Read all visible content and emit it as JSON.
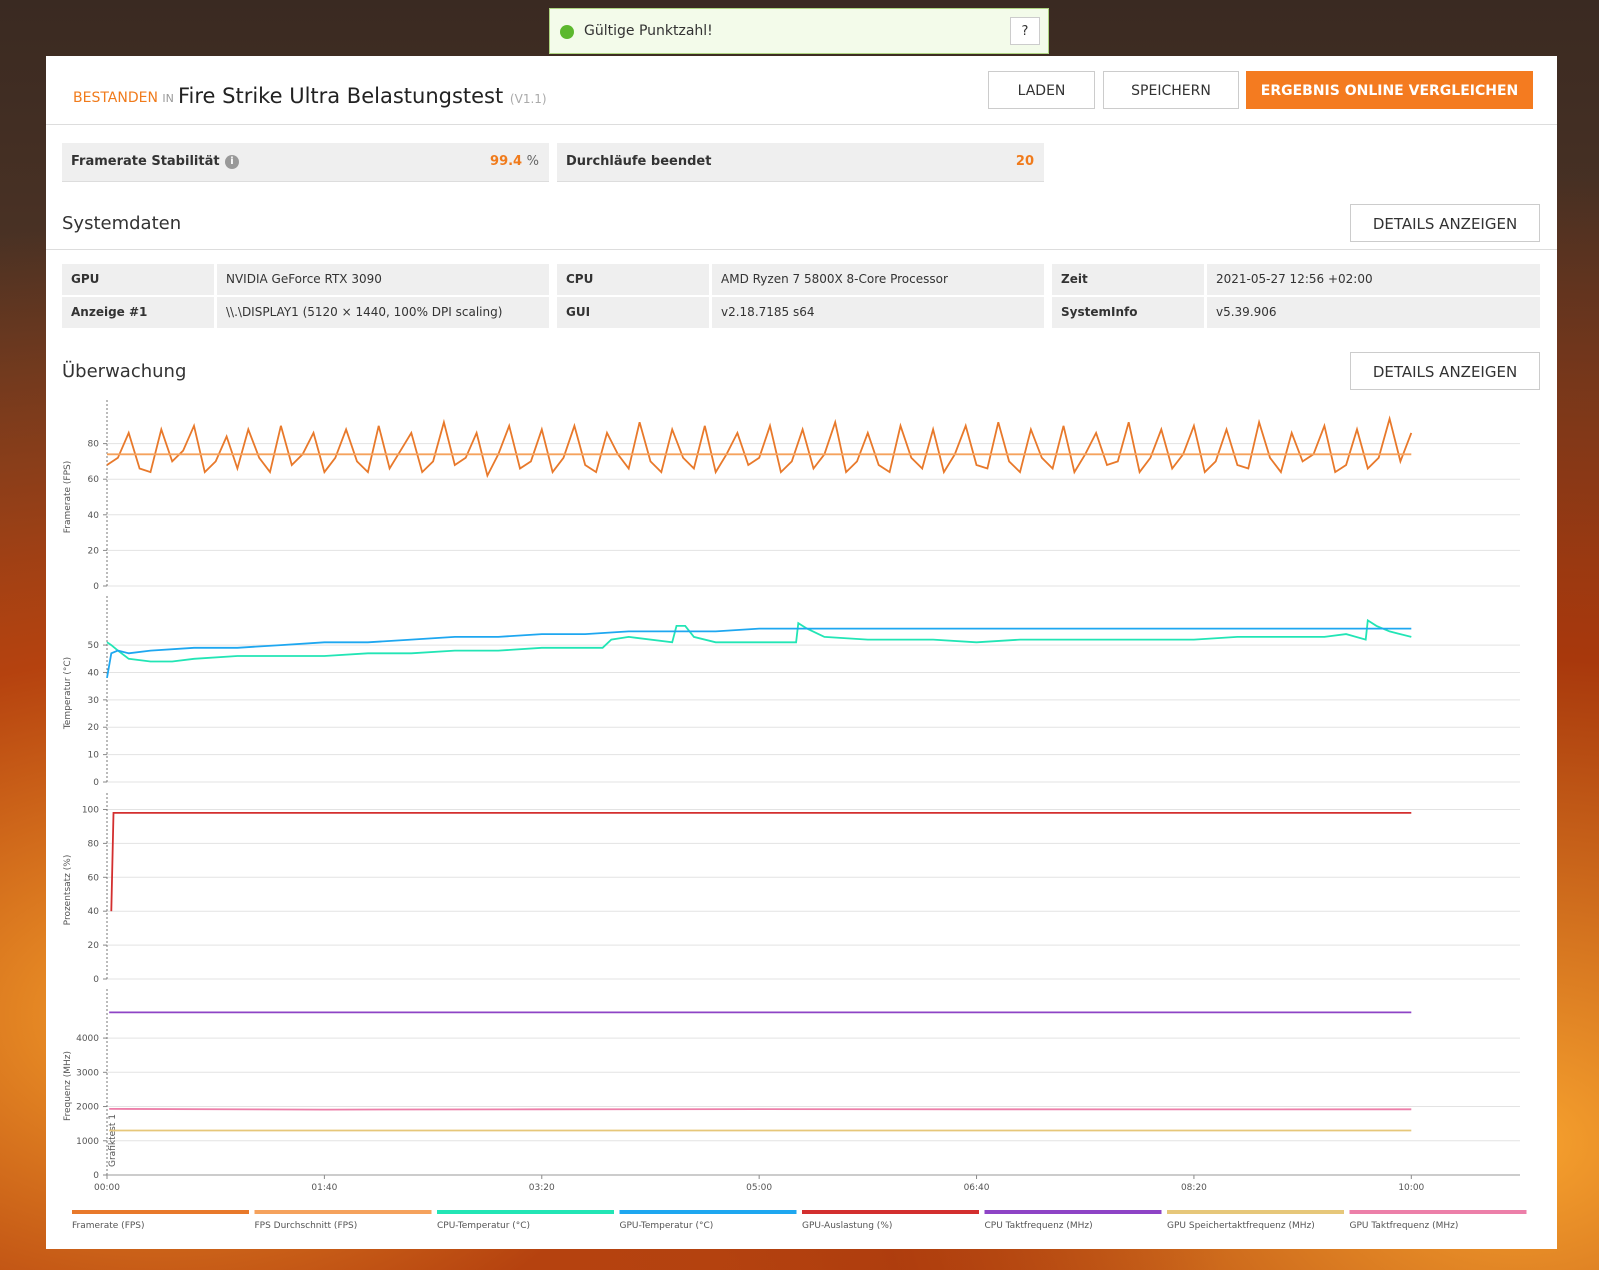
{
  "toast": {
    "text": "Gültige Punktzahl!",
    "help": "?"
  },
  "header": {
    "status": "BESTANDEN",
    "in": "IN",
    "title": "Fire Strike Ultra Belastungstest",
    "version": "(V1.1)",
    "buttons": [
      "LADEN",
      "SPEICHERN",
      "ERGEBNIS ONLINE VERGLEICHEN"
    ]
  },
  "stats": [
    {
      "label": "Framerate Stabilität",
      "value": 99.4,
      "unit": "%"
    },
    {
      "label": "Durchläufe beendet",
      "value": 20
    }
  ],
  "systemdaten": {
    "title": "Systemdaten",
    "button": "DETAILS ANZEIGEN",
    "rows": [
      [
        "GPU",
        "NVIDIA GeForce RTX 3090",
        "CPU",
        "AMD Ryzen 7 5800X 8-Core Processor",
        "Zeit",
        "2021-05-27 12:56 +02:00"
      ],
      [
        "Anzeige #1",
        "\\\\.\\DISPLAY1 (5120 × 1440, 100% DPI scaling)",
        "GUI",
        "v2.18.7185 s64",
        "SystemInfo",
        "v5.39.906"
      ]
    ]
  },
  "ueberwachung": {
    "title": "Überwachung",
    "button": "DETAILS ANZEIGEN"
  },
  "chart_data": [
    {
      "type": "line",
      "ylabel": "Framerate (FPS)",
      "xlim": [
        0,
        650
      ],
      "ylim": [
        0,
        100
      ],
      "yticks": [
        0,
        20,
        40,
        60,
        80
      ],
      "grid": true,
      "series": [
        {
          "name": "Framerate (FPS)",
          "color": "#e8792b",
          "x": [
            0,
            5,
            10,
            15,
            20,
            25,
            30,
            35,
            40,
            45,
            50,
            55,
            60,
            65,
            70,
            75,
            80,
            85,
            90,
            95,
            100,
            105,
            110,
            115,
            120,
            125,
            130,
            135,
            140,
            145,
            150,
            155,
            160,
            165,
            170,
            175,
            180,
            185,
            190,
            195,
            200,
            205,
            210,
            215,
            220,
            225,
            230,
            235,
            240,
            245,
            250,
            255,
            260,
            265,
            270,
            275,
            280,
            285,
            290,
            295,
            300,
            305,
            310,
            315,
            320,
            325,
            330,
            335,
            340,
            345,
            350,
            355,
            360,
            365,
            370,
            375,
            380,
            385,
            390,
            395,
            400,
            405,
            410,
            415,
            420,
            425,
            430,
            435,
            440,
            445,
            450,
            455,
            460,
            465,
            470,
            475,
            480,
            485,
            490,
            495,
            500,
            505,
            510,
            515,
            520,
            525,
            530,
            535,
            540,
            545,
            550,
            555,
            560,
            565,
            570,
            575,
            580,
            585,
            590,
            595,
            600
          ],
          "values": [
            68,
            72,
            86,
            66,
            64,
            88,
            70,
            76,
            90,
            64,
            70,
            84,
            66,
            88,
            72,
            64,
            90,
            68,
            74,
            86,
            64,
            72,
            88,
            70,
            64,
            90,
            66,
            76,
            86,
            64,
            70,
            92,
            68,
            72,
            86,
            62,
            74,
            90,
            66,
            70,
            88,
            64,
            72,
            90,
            68,
            64,
            86,
            74,
            66,
            92,
            70,
            64,
            88,
            72,
            66,
            90,
            64,
            74,
            86,
            68,
            72,
            90,
            64,
            70,
            88,
            66,
            74,
            92,
            64,
            70,
            86,
            68,
            64,
            90,
            72,
            66,
            88,
            64,
            74,
            90,
            68,
            66,
            92,
            70,
            64,
            88,
            72,
            66,
            90,
            64,
            74,
            86,
            68,
            70,
            92,
            64,
            72,
            88,
            66,
            74,
            90,
            64,
            70,
            88,
            68,
            66,
            92,
            72,
            64,
            86,
            70,
            74,
            90,
            64,
            68,
            88,
            66,
            72,
            94,
            70,
            86
          ]
        },
        {
          "name": "FPS Durchschnitt (FPS)",
          "color": "#f5a25d",
          "x": [
            0,
            600
          ],
          "values": [
            74,
            74
          ]
        }
      ]
    },
    {
      "type": "line",
      "ylabel": "Temperatur (°C)",
      "xlim": [
        0,
        650
      ],
      "ylim": [
        0,
        65
      ],
      "yticks": [
        0,
        10,
        20,
        30,
        40,
        50
      ],
      "grid": true,
      "series": [
        {
          "name": "CPU-Temperatur (°C)",
          "color": "#22e5b5",
          "x": [
            0,
            2,
            5,
            10,
            20,
            30,
            40,
            60,
            80,
            100,
            120,
            140,
            160,
            180,
            200,
            220,
            228,
            232,
            240,
            260,
            262,
            266,
            270,
            280,
            300,
            310,
            317,
            318,
            322,
            330,
            350,
            380,
            400,
            420,
            440,
            460,
            480,
            500,
            520,
            540,
            560,
            570,
            579,
            580,
            584,
            590,
            600
          ],
          "values": [
            51,
            50,
            48,
            45,
            44,
            44,
            45,
            46,
            46,
            46,
            47,
            47,
            48,
            48,
            49,
            49,
            49,
            52,
            53,
            51,
            57,
            57,
            53,
            51,
            51,
            51,
            51,
            58,
            56,
            53,
            52,
            52,
            51,
            52,
            52,
            52,
            52,
            52,
            53,
            53,
            53,
            54,
            52,
            59,
            57,
            55,
            53
          ]
        },
        {
          "name": "GPU-Temperatur (°C)",
          "color": "#1ea7f0",
          "x": [
            0,
            2,
            5,
            10,
            20,
            40,
            60,
            80,
            100,
            120,
            140,
            160,
            180,
            200,
            220,
            240,
            260,
            280,
            300,
            340,
            400,
            440,
            480,
            520,
            560,
            600
          ],
          "values": [
            38,
            47,
            48,
            47,
            48,
            49,
            49,
            50,
            51,
            51,
            52,
            53,
            53,
            54,
            54,
            55,
            55,
            55,
            56,
            56,
            56,
            56,
            56,
            56,
            56,
            56
          ]
        }
      ]
    },
    {
      "type": "line",
      "ylabel": "Prozentsatz (%)",
      "xlim": [
        0,
        650
      ],
      "ylim": [
        0,
        105
      ],
      "yticks": [
        0,
        20,
        40,
        60,
        80,
        100
      ],
      "grid": true,
      "series": [
        {
          "name": "GPU-Auslastung (%)",
          "color": "#d32f2f",
          "x": [
            2,
            3,
            600
          ],
          "values": [
            40,
            98,
            98
          ]
        }
      ]
    },
    {
      "type": "line",
      "ylabel": "Frequenz (MHz)",
      "xlim": [
        0,
        650
      ],
      "ylim": [
        0,
        5200
      ],
      "yticks": [
        0,
        1000,
        2000,
        3000,
        4000
      ],
      "grid": true,
      "xticks": [
        {
          "value": 0,
          "label": "00:00"
        },
        {
          "value": 100,
          "label": "01:40"
        },
        {
          "value": 200,
          "label": "03:20"
        },
        {
          "value": 300,
          "label": "05:00"
        },
        {
          "value": 400,
          "label": "06:40"
        },
        {
          "value": 500,
          "label": "08:20"
        },
        {
          "value": 600,
          "label": "10:00"
        }
      ],
      "annotations": [
        {
          "text": "Grafiktest 1",
          "x": 0
        }
      ],
      "series": [
        {
          "name": "CPU Taktfrequenz (MHz)",
          "color": "#8e44c6",
          "x": [
            1,
            600
          ],
          "values": [
            4750,
            4750
          ]
        },
        {
          "name": "GPU Speichertaktfrequenz (MHz)",
          "color": "#e6c77a",
          "x": [
            1,
            600
          ],
          "values": [
            1300,
            1300
          ]
        },
        {
          "name": "GPU Taktfrequenz (MHz)",
          "color": "#ec7fa9",
          "x": [
            1,
            100,
            200,
            300,
            400,
            500,
            600
          ],
          "values": [
            1930,
            1910,
            1920,
            1925,
            1920,
            1915,
            1920
          ]
        }
      ]
    }
  ]
}
